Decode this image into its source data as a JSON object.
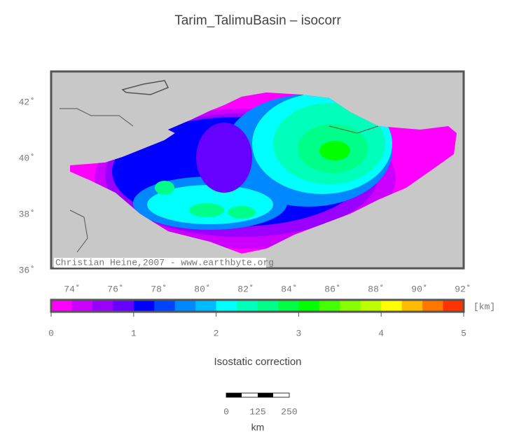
{
  "title": "Tarim_TalimuBasin – isocorr",
  "map": {
    "lat_labels": [
      "42˚",
      "40˚",
      "38˚",
      "36˚"
    ],
    "lon_labels": [
      "74˚",
      "76˚",
      "78˚",
      "80˚",
      "82˚",
      "84˚",
      "86˚",
      "88˚",
      "90˚",
      "92˚"
    ],
    "credit": "Christian Heine,2007 - www.earthbyte.org"
  },
  "colorbar": {
    "colors": [
      "#ff00ff",
      "#cc00ff",
      "#9900ff",
      "#6600ff",
      "#0000ff",
      "#0044ff",
      "#0088ff",
      "#00bbff",
      "#00ffff",
      "#00ffbb",
      "#00ff88",
      "#00ff44",
      "#00ff00",
      "#44ff00",
      "#88ff00",
      "#bbff00",
      "#ffff00",
      "#ffbb00",
      "#ff7700",
      "#ff3300"
    ],
    "tick_labels": [
      "0",
      "1",
      "2",
      "3",
      "4",
      "5"
    ],
    "unit": "[km]",
    "label": "Isostatic correction"
  },
  "scalebar": {
    "tick_labels": [
      "0",
      "125",
      "250"
    ],
    "unit": "km"
  }
}
